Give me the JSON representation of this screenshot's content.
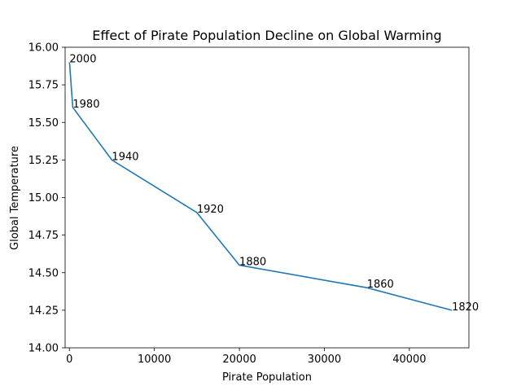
{
  "chart_data": {
    "type": "line",
    "title": "Effect of Pirate Population Decline on Global Warming",
    "xlabel": "Pirate Population",
    "ylabel": "Global Temperature",
    "xlim": [
      -500,
      47000
    ],
    "ylim": [
      14.0,
      16.0
    ],
    "xticks": [
      0,
      10000,
      20000,
      30000,
      40000
    ],
    "xtick_labels": [
      "0",
      "10000",
      "20000",
      "30000",
      "40000"
    ],
    "yticks": [
      14.0,
      14.25,
      14.5,
      14.75,
      15.0,
      15.25,
      15.5,
      15.75,
      16.0
    ],
    "ytick_labels": [
      "14.00",
      "14.25",
      "14.50",
      "14.75",
      "15.00",
      "15.25",
      "15.50",
      "15.75",
      "16.00"
    ],
    "grid": false,
    "line_color": "#1f77b4",
    "points": [
      {
        "x": 45000,
        "y": 14.25,
        "label": "1820"
      },
      {
        "x": 35000,
        "y": 14.4,
        "label": "1860"
      },
      {
        "x": 20000,
        "y": 14.55,
        "label": "1880"
      },
      {
        "x": 15000,
        "y": 14.9,
        "label": "1920"
      },
      {
        "x": 5000,
        "y": 15.25,
        "label": "1940"
      },
      {
        "x": 400,
        "y": 15.6,
        "label": "1980"
      },
      {
        "x": 17,
        "y": 15.9,
        "label": "2000"
      }
    ]
  }
}
